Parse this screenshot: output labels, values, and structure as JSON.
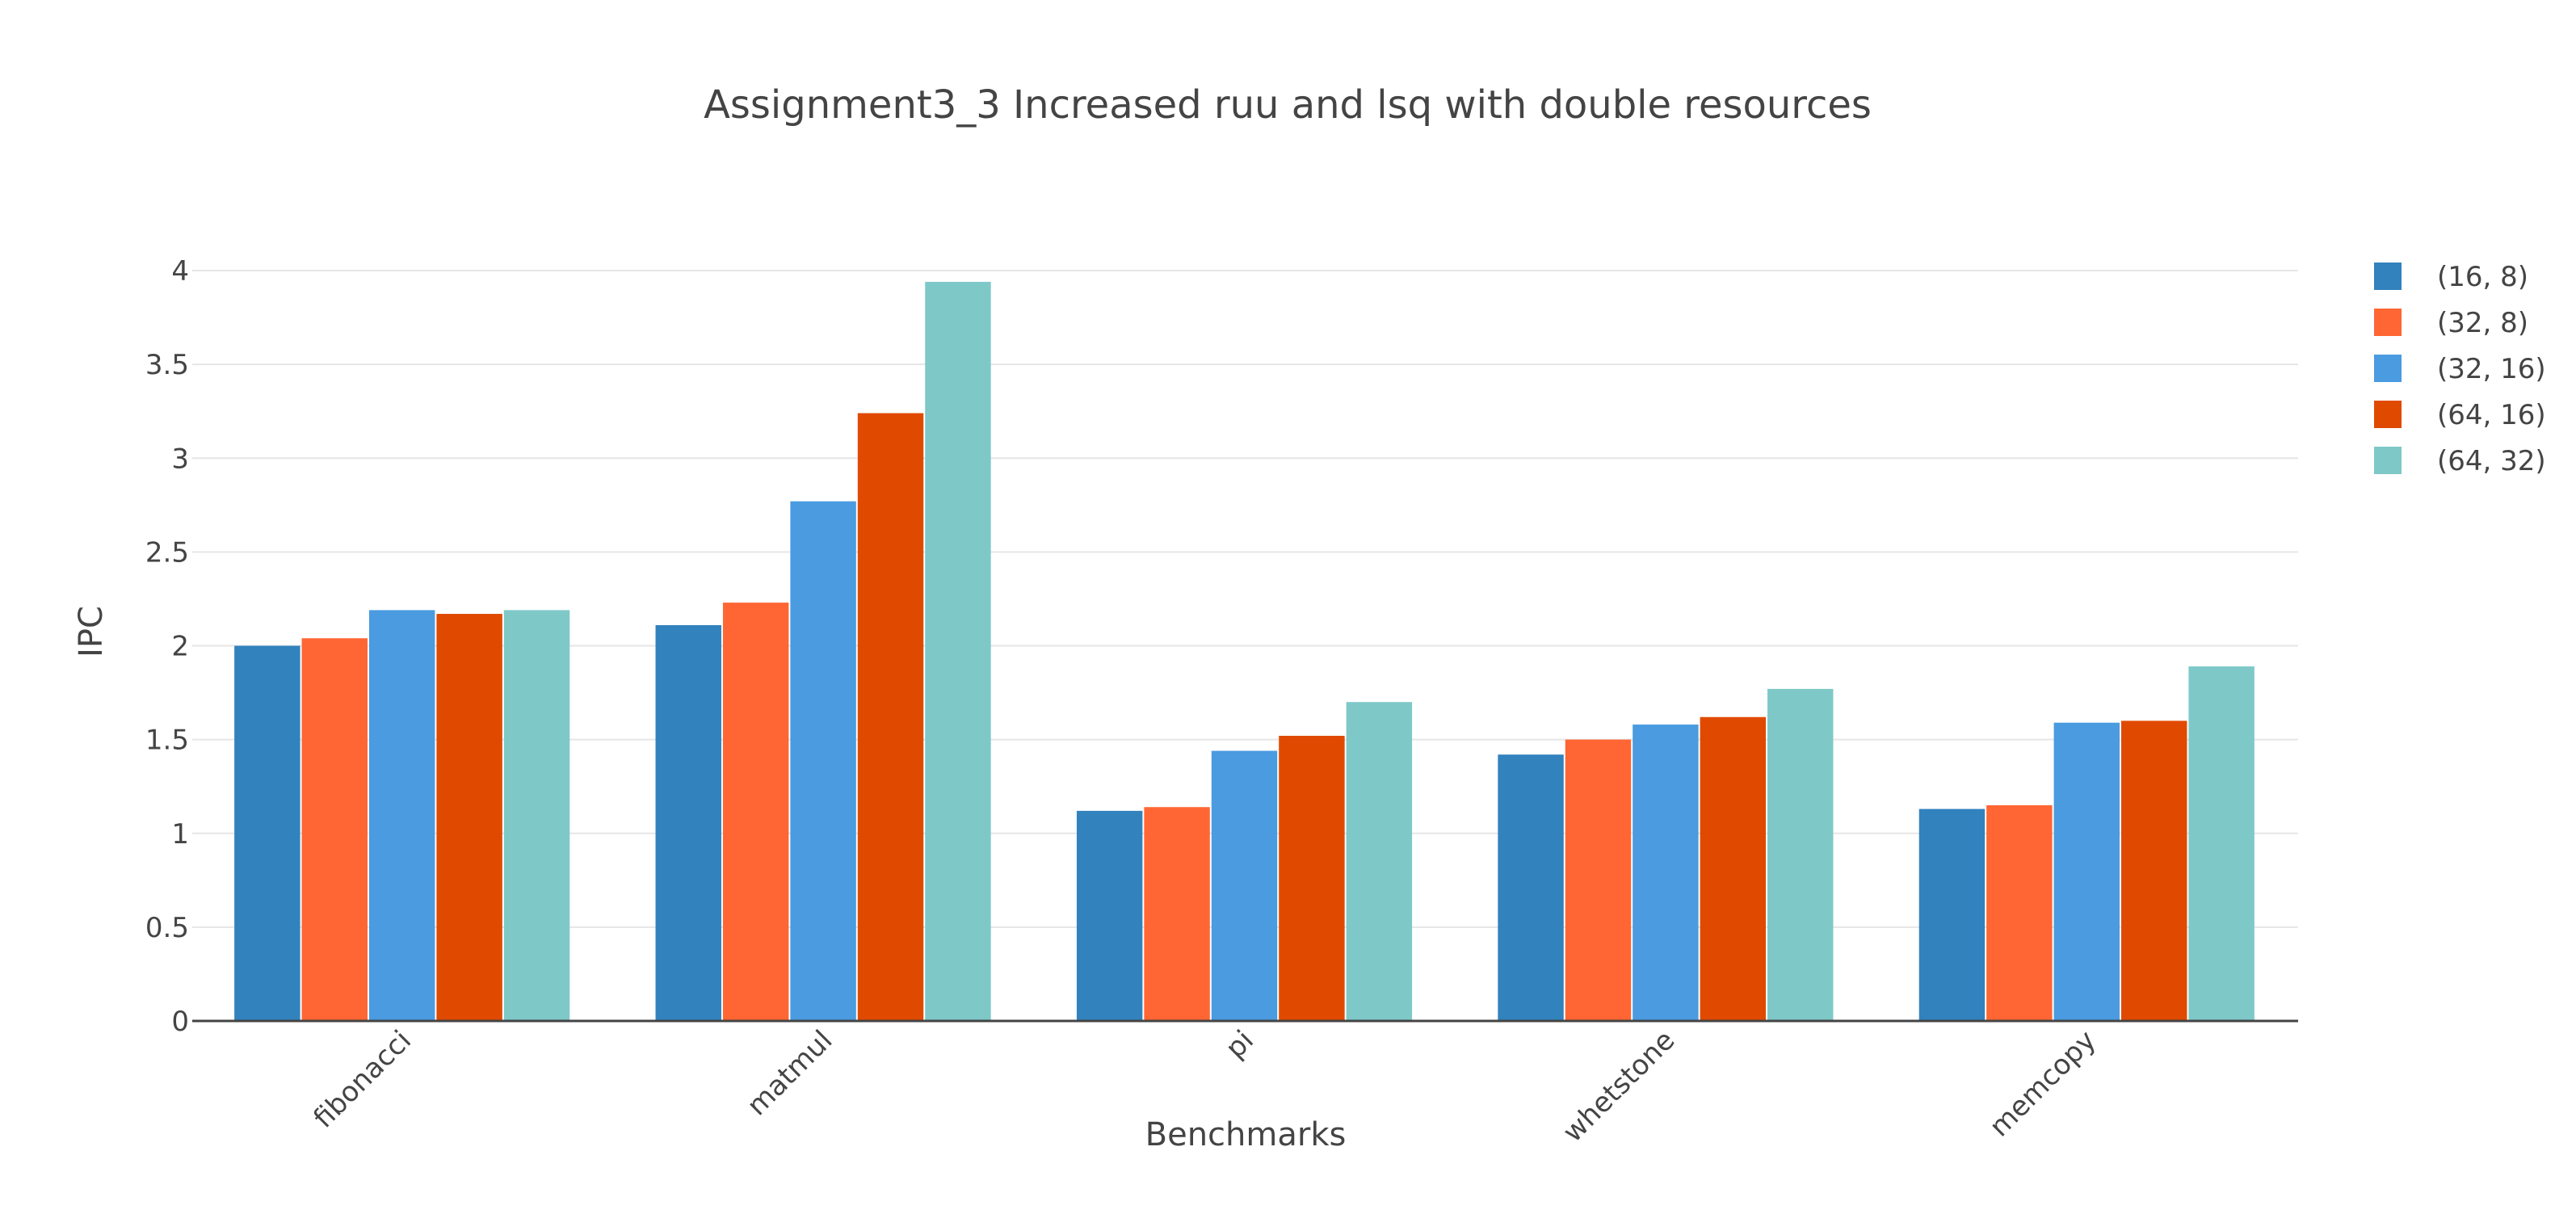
{
  "chart_data": {
    "type": "bar",
    "title": "Assignment3_3 Increased ruu and lsq with double resources",
    "xlabel": "Benchmarks",
    "ylabel": "IPC",
    "ylim": [
      0,
      4
    ],
    "yticks": [
      "0",
      "0.5",
      "1",
      "1.5",
      "2",
      "2.5",
      "3",
      "3.5",
      "4"
    ],
    "grid": true,
    "legend_position": "right",
    "categories": [
      "fibonacci",
      "matmul",
      "pi",
      "whetstone",
      "memcopy"
    ],
    "series": [
      {
        "name": "(16, 8)",
        "color": "#3182bd",
        "values": [
          2.0,
          2.11,
          1.12,
          1.42,
          1.13
        ]
      },
      {
        "name": "(32, 8)",
        "color": "#ff6633",
        "values": [
          2.04,
          2.23,
          1.14,
          1.5,
          1.15
        ]
      },
      {
        "name": "(32, 16)",
        "color": "#4a9be0",
        "values": [
          2.19,
          2.77,
          1.44,
          1.58,
          1.59
        ]
      },
      {
        "name": "(64, 16)",
        "color": "#e04a00",
        "values": [
          2.17,
          3.24,
          1.52,
          1.62,
          1.6
        ]
      },
      {
        "name": "(64, 32)",
        "color": "#7ec8c8",
        "values": [
          2.19,
          3.94,
          1.7,
          1.77,
          1.89
        ]
      }
    ]
  }
}
